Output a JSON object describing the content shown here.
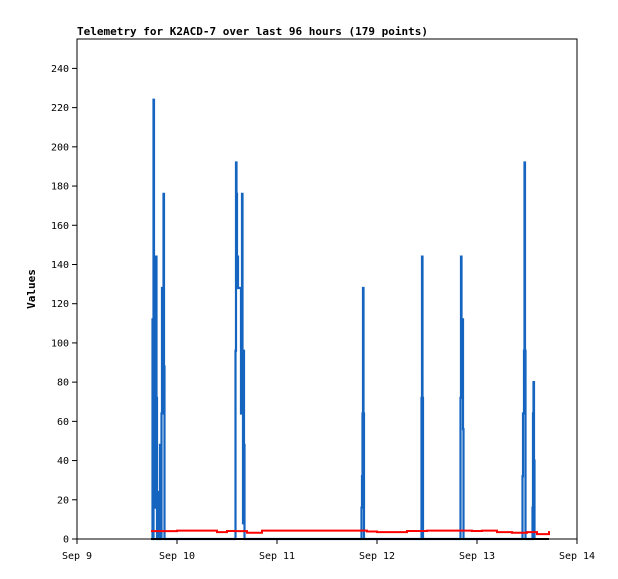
{
  "chart_data": {
    "type": "line",
    "title": "Telemetry for K2ACD-7 over last 96 hours (179 points)",
    "xlabel": "",
    "ylabel": "Values",
    "xlim": [
      "Sep 9",
      "Sep 14"
    ],
    "ylim": [
      0,
      255
    ],
    "x_ticks": [
      "Sep 9",
      "Sep 10",
      "Sep 11",
      "Sep 12",
      "Sep 13",
      "Sep 14"
    ],
    "y_ticks": [
      0,
      20,
      40,
      60,
      80,
      100,
      120,
      140,
      160,
      180,
      200,
      220,
      240
    ],
    "grid": false,
    "x_unit": "days from Sep 9 00:00",
    "series": [
      {
        "color": "#1565c0",
        "points": [
          [
            0.75,
            0
          ],
          [
            0.755,
            112
          ],
          [
            0.76,
            0
          ],
          [
            0.765,
            224
          ],
          [
            0.77,
            30
          ],
          [
            0.775,
            112
          ],
          [
            0.78,
            16
          ],
          [
            0.785,
            72
          ],
          [
            0.79,
            144
          ],
          [
            0.795,
            72
          ],
          [
            0.8,
            0
          ],
          [
            0.81,
            8
          ],
          [
            0.815,
            0
          ],
          [
            0.82,
            24
          ],
          [
            0.825,
            0
          ],
          [
            0.83,
            48
          ],
          [
            0.835,
            0
          ],
          [
            0.84,
            0
          ],
          [
            0.845,
            64
          ],
          [
            0.85,
            128
          ],
          [
            0.855,
            64
          ],
          [
            0.86,
            88
          ],
          [
            0.865,
            176
          ],
          [
            0.87,
            88
          ],
          [
            0.875,
            0
          ],
          [
            1.58,
            0
          ],
          [
            1.585,
            96
          ],
          [
            1.59,
            192
          ],
          [
            1.595,
            176
          ],
          [
            1.6,
            128
          ],
          [
            1.605,
            144
          ],
          [
            1.61,
            128
          ],
          [
            1.635,
            128
          ],
          [
            1.64,
            64
          ],
          [
            1.645,
            88
          ],
          [
            1.65,
            176
          ],
          [
            1.655,
            64
          ],
          [
            1.66,
            8
          ],
          [
            1.665,
            96
          ],
          [
            1.67,
            48
          ],
          [
            1.675,
            0
          ],
          [
            2.84,
            0
          ],
          [
            2.845,
            16
          ],
          [
            2.85,
            32
          ],
          [
            2.855,
            64
          ],
          [
            2.86,
            128
          ],
          [
            2.865,
            64
          ],
          [
            2.87,
            0
          ],
          [
            3.44,
            0
          ],
          [
            3.445,
            72
          ],
          [
            3.45,
            144
          ],
          [
            3.455,
            72
          ],
          [
            3.46,
            0
          ],
          [
            3.83,
            0
          ],
          [
            3.835,
            72
          ],
          [
            3.84,
            144
          ],
          [
            3.845,
            72
          ],
          [
            3.85,
            84
          ],
          [
            3.855,
            112
          ],
          [
            3.86,
            56
          ],
          [
            3.865,
            0
          ],
          [
            4.45,
            0
          ],
          [
            4.455,
            32
          ],
          [
            4.46,
            64
          ],
          [
            4.465,
            64
          ],
          [
            4.47,
            96
          ],
          [
            4.475,
            192
          ],
          [
            4.48,
            96
          ],
          [
            4.485,
            0
          ],
          [
            4.55,
            0
          ],
          [
            4.555,
            16
          ],
          [
            4.56,
            64
          ],
          [
            4.565,
            80
          ],
          [
            4.57,
            40
          ],
          [
            4.575,
            0
          ]
        ]
      },
      {
        "color": "#ff0000",
        "points": [
          [
            0.74,
            4
          ],
          [
            0.9,
            4
          ],
          [
            1.0,
            4.3
          ],
          [
            1.2,
            4.3
          ],
          [
            1.4,
            3.5
          ],
          [
            1.5,
            4.1
          ],
          [
            1.58,
            4
          ],
          [
            1.7,
            3.2
          ],
          [
            1.85,
            4.3
          ],
          [
            2.1,
            4.3
          ],
          [
            2.4,
            4.3
          ],
          [
            2.6,
            4.3
          ],
          [
            2.8,
            4.3
          ],
          [
            2.9,
            3.8
          ],
          [
            3.0,
            3.5
          ],
          [
            3.15,
            3.5
          ],
          [
            3.3,
            4.1
          ],
          [
            3.5,
            4.3
          ],
          [
            3.8,
            4.3
          ],
          [
            3.95,
            4.1
          ],
          [
            4.05,
            4.3
          ],
          [
            4.2,
            3.5
          ],
          [
            4.35,
            3.2
          ],
          [
            4.5,
            3.5
          ],
          [
            4.6,
            2.5
          ],
          [
            4.72,
            4
          ]
        ]
      },
      {
        "color": "#000000",
        "points": [
          [
            0.74,
            0
          ],
          [
            4.72,
            0
          ]
        ]
      }
    ]
  }
}
